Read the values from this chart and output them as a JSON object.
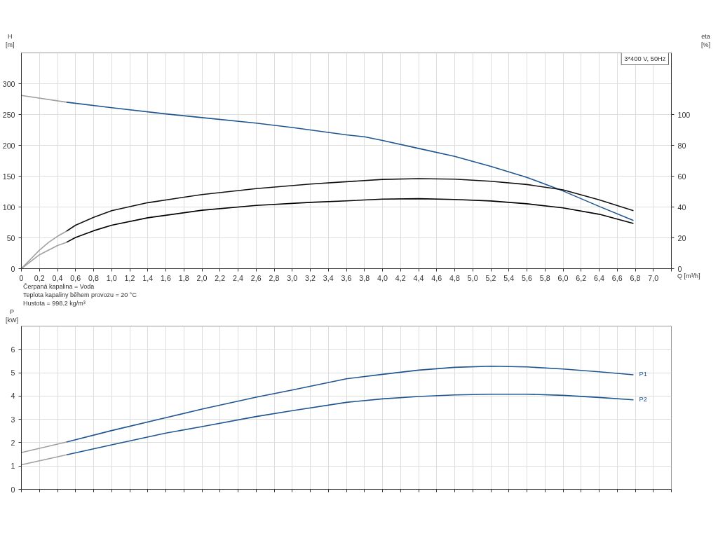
{
  "chart_data": [
    {
      "type": "line",
      "title": "3*400 V, 50Hz",
      "ylabel": "H\n[m]",
      "y2label": "eta\n[%]",
      "xlabel": "Q [m³/h]",
      "annotations": [
        "Čerpaná kapalina = Voda",
        "Teplota kapaliny během provozu = 20 °C",
        "Hustota = 998.2 kg/m³"
      ],
      "xlim": [
        0,
        7.2
      ],
      "ylim": [
        0,
        350
      ],
      "y2lim": [
        0,
        140
      ],
      "xticks": [
        {
          "value": 0,
          "label": "0"
        },
        {
          "value": 0.2,
          "label": "0,2"
        },
        {
          "value": 0.4,
          "label": "0,4"
        },
        {
          "value": 0.6,
          "label": "0,6"
        },
        {
          "value": 0.8,
          "label": "0,8"
        },
        {
          "value": 1.0,
          "label": "1,0"
        },
        {
          "value": 1.2,
          "label": "1,2"
        },
        {
          "value": 1.4,
          "label": "1,4"
        },
        {
          "value": 1.6,
          "label": "1,6"
        },
        {
          "value": 1.8,
          "label": "1,8"
        },
        {
          "value": 2.0,
          "label": "2,0"
        },
        {
          "value": 2.2,
          "label": "2,2"
        },
        {
          "value": 2.4,
          "label": "2,4"
        },
        {
          "value": 2.6,
          "label": "2,6"
        },
        {
          "value": 2.8,
          "label": "2,8"
        },
        {
          "value": 3.0,
          "label": "3,0"
        },
        {
          "value": 3.2,
          "label": "3,2"
        },
        {
          "value": 3.4,
          "label": "3,4"
        },
        {
          "value": 3.6,
          "label": "3,6"
        },
        {
          "value": 3.8,
          "label": "3,8"
        },
        {
          "value": 4.0,
          "label": "4,0"
        },
        {
          "value": 4.2,
          "label": "4,2"
        },
        {
          "value": 4.4,
          "label": "4,4"
        },
        {
          "value": 4.6,
          "label": "4,6"
        },
        {
          "value": 4.8,
          "label": "4,8"
        },
        {
          "value": 5.0,
          "label": "5,0"
        },
        {
          "value": 5.2,
          "label": "5,2"
        },
        {
          "value": 5.4,
          "label": "5,4"
        },
        {
          "value": 5.6,
          "label": "5,6"
        },
        {
          "value": 5.8,
          "label": "5,8"
        },
        {
          "value": 6.0,
          "label": "6,0"
        },
        {
          "value": 6.2,
          "label": "6,2"
        },
        {
          "value": 6.4,
          "label": "6,4"
        },
        {
          "value": 6.6,
          "label": "6,6"
        },
        {
          "value": 6.8,
          "label": "6,8"
        },
        {
          "value": 7.0,
          "label": "7,0"
        },
        {
          "value": 7.2,
          "label": null
        }
      ],
      "yticks": [
        0,
        50,
        100,
        150,
        200,
        250,
        300
      ],
      "y2ticks": [
        0,
        20,
        40,
        60,
        80,
        100
      ],
      "grid": true,
      "legend": false,
      "series": [
        {
          "color": "#a0a0a0",
          "x": [
            0,
            0.5
          ],
          "values": [
            281,
            270
          ]
        },
        {
          "color": "#1f5591",
          "x": [
            0.5,
            1.0,
            1.6,
            2.0,
            2.6,
            3.0,
            3.6,
            3.8,
            4.0,
            4.4,
            4.8,
            5.2,
            5.6,
            6.0,
            6.4,
            6.78
          ],
          "values": [
            270,
            261,
            251,
            245,
            236,
            229,
            217,
            214,
            208,
            195,
            182,
            166,
            148,
            126,
            101,
            78
          ]
        },
        {
          "color": "#a0a0a0",
          "axis": "y2",
          "x": [
            0,
            0.1,
            0.2,
            0.3,
            0.4,
            0.5
          ],
          "values": [
            0,
            6,
            12,
            17,
            21,
            24.3
          ]
        },
        {
          "color": "#111111",
          "axis": "y2",
          "x": [
            0.5,
            0.6,
            0.8,
            1.0,
            1.4,
            2.0,
            2.6,
            3.2,
            3.6,
            4.0,
            4.4,
            4.8,
            5.2,
            5.6,
            6.0,
            6.4,
            6.78
          ],
          "values": [
            24.3,
            28.2,
            33.3,
            37.6,
            42.8,
            48.1,
            51.9,
            54.9,
            56.4,
            57.9,
            58.4,
            58.1,
            56.7,
            54.6,
            51.1,
            44.7,
            37.6
          ]
        },
        {
          "color": "#a0a0a0",
          "axis": "y2",
          "x": [
            0,
            0.2,
            0.4,
            0.5
          ],
          "values": [
            0,
            9,
            15,
            17.1
          ]
        },
        {
          "color": "#000000",
          "axis": "y2",
          "x": [
            0.5,
            0.6,
            0.8,
            1.0,
            1.4,
            2.0,
            2.6,
            3.2,
            3.6,
            4.0,
            4.4,
            4.8,
            5.2,
            5.6,
            6.0,
            6.4,
            6.78
          ],
          "values": [
            17.1,
            20.2,
            24.6,
            28.2,
            33.0,
            37.9,
            41.0,
            43.0,
            44.0,
            45.1,
            45.4,
            44.9,
            43.9,
            42.1,
            39.4,
            35.3,
            29.3
          ]
        }
      ]
    },
    {
      "type": "line",
      "ylabel": "P\n[kW]",
      "xlim": [
        0,
        7.2
      ],
      "ylim": [
        0,
        7
      ],
      "xticks": [
        0,
        0.2,
        0.4,
        0.6,
        0.8,
        1.0,
        1.2,
        1.4,
        1.6,
        1.8,
        2.0,
        2.2,
        2.4,
        2.6,
        2.8,
        3.0,
        3.2,
        3.4,
        3.6,
        3.8,
        4.0,
        4.2,
        4.4,
        4.6,
        4.8,
        5.0,
        5.2,
        5.4,
        5.6,
        5.8,
        6.0,
        6.2,
        6.4,
        6.6,
        6.8,
        7.0,
        7.2
      ],
      "yticks": [
        0,
        1,
        2,
        3,
        4,
        5,
        6
      ],
      "grid": true,
      "legend": false,
      "tick_labels": "y",
      "series": [
        {
          "color": "#a0a0a0",
          "x": [
            0,
            0.5
          ],
          "values": [
            1.58,
            2.03
          ]
        },
        {
          "name": "P1",
          "color": "#1f5591",
          "x": [
            0.5,
            1.0,
            1.6,
            2.0,
            2.6,
            3.0,
            3.6,
            4.0,
            4.4,
            4.8,
            5.2,
            5.6,
            6.0,
            6.4,
            6.78
          ],
          "values": [
            2.03,
            2.52,
            3.07,
            3.44,
            3.95,
            4.26,
            4.74,
            4.93,
            5.11,
            5.23,
            5.28,
            5.25,
            5.16,
            5.04,
            4.91
          ]
        },
        {
          "color": "#a0a0a0",
          "x": [
            0,
            0.5
          ],
          "values": [
            1.05,
            1.48
          ]
        },
        {
          "name": "P2",
          "color": "#1f5591",
          "x": [
            0.5,
            1.0,
            1.6,
            2.0,
            2.6,
            3.0,
            3.6,
            4.0,
            4.4,
            4.8,
            5.2,
            5.6,
            6.0,
            6.4,
            6.78
          ],
          "values": [
            1.48,
            1.91,
            2.41,
            2.69,
            3.12,
            3.37,
            3.73,
            3.88,
            3.98,
            4.05,
            4.08,
            4.08,
            4.03,
            3.94,
            3.84
          ]
        }
      ]
    }
  ]
}
